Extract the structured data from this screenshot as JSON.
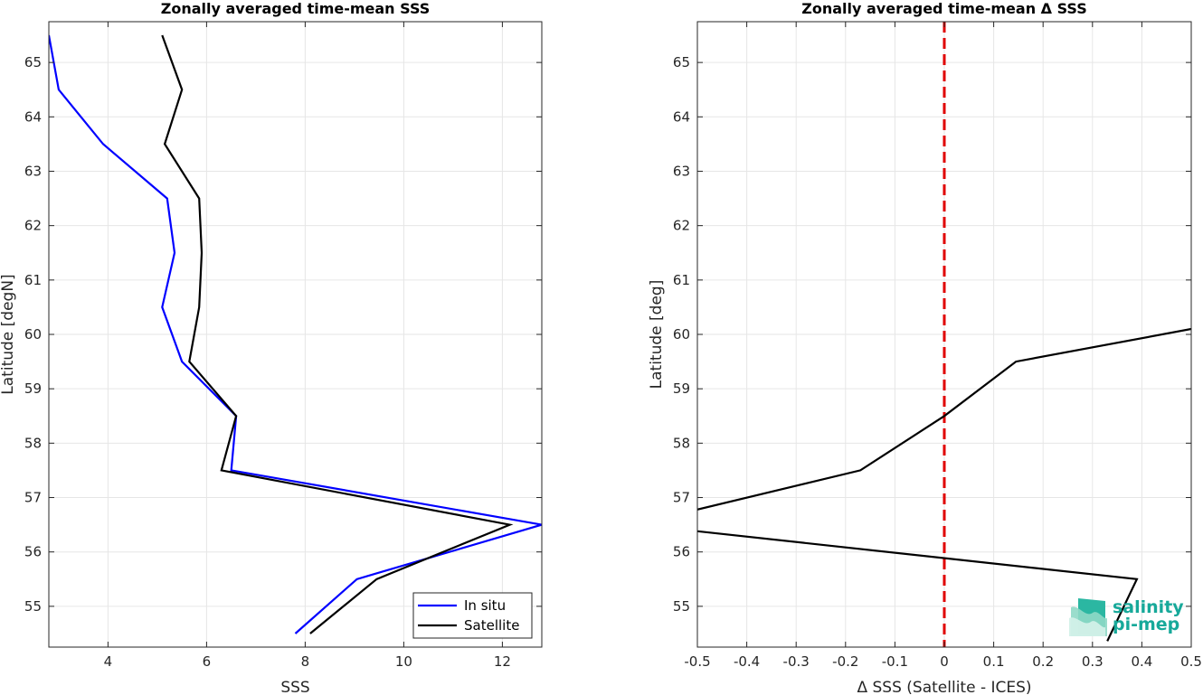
{
  "chart_data": [
    {
      "type": "line",
      "title": "Zonally averaged time-mean SSS",
      "xlabel": "SSS",
      "ylabel": "Latitude [degN]",
      "xlim": [
        2.8,
        12.8
      ],
      "ylim": [
        54.25,
        65.75
      ],
      "xticks": [
        4,
        6,
        8,
        10,
        12
      ],
      "yticks": [
        55,
        56,
        57,
        58,
        59,
        60,
        61,
        62,
        63,
        64,
        65
      ],
      "grid": true,
      "legend_position": "bottom-right",
      "series": [
        {
          "name": "In situ",
          "color": "#0000ff",
          "x": [
            2.8,
            3.0,
            3.9,
            5.2,
            5.35,
            5.1,
            5.5,
            6.6,
            6.5,
            12.8,
            9.05,
            7.8
          ],
          "y": [
            65.5,
            64.5,
            63.5,
            62.5,
            61.5,
            60.5,
            59.5,
            58.5,
            57.5,
            56.5,
            55.5,
            54.5
          ]
        },
        {
          "name": "Satellite",
          "color": "#000000",
          "x": [
            5.1,
            5.5,
            5.15,
            5.85,
            5.9,
            5.85,
            5.65,
            6.6,
            6.3,
            12.15,
            9.45,
            8.1
          ],
          "y": [
            65.5,
            64.5,
            63.5,
            62.5,
            61.5,
            60.5,
            59.5,
            58.5,
            57.5,
            56.5,
            55.5,
            54.5
          ]
        }
      ]
    },
    {
      "type": "line",
      "title": "Zonally averaged time-mean Δ SSS",
      "xlabel": "Δ SSS (Satellite - ICES)",
      "ylabel": "Latitude [deg]",
      "xlim": [
        -0.5,
        0.5
      ],
      "ylim": [
        54.25,
        65.75
      ],
      "xticks": [
        -0.5,
        -0.4,
        -0.3,
        -0.2,
        -0.1,
        0,
        0.1,
        0.2,
        0.3,
        0.4,
        0.5
      ],
      "yticks": [
        55,
        56,
        57,
        58,
        59,
        60,
        61,
        62,
        63,
        64,
        65
      ],
      "grid": true,
      "reference_line": {
        "x": 0,
        "color": "#e00000",
        "style": "dashed"
      },
      "series": [
        {
          "color": "#000000",
          "x": [
            0.5,
            0.145,
            0.0,
            -0.17,
            -0.5
          ],
          "y": [
            60.1,
            59.5,
            58.5,
            57.5,
            56.78
          ]
        },
        {
          "color": "#000000",
          "x": [
            -0.5,
            0.39,
            0.33
          ],
          "y": [
            56.38,
            55.5,
            54.36
          ]
        }
      ]
    }
  ],
  "logo": {
    "line1": "salinity",
    "line2": "pi-mep"
  }
}
